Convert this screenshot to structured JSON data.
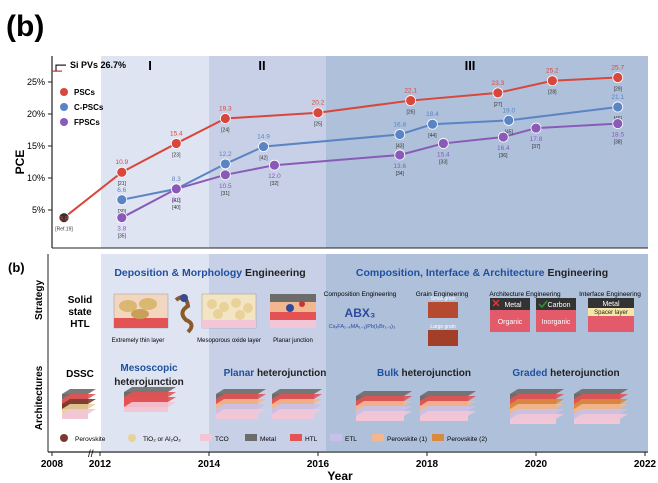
{
  "panel_label_top": "(b)",
  "panel_label_bottom": "(b)",
  "chart_data": {
    "type": "line",
    "ylabel": "PCE",
    "xlabel": "Year",
    "x_ticks": [
      "2008",
      "2012",
      "2014",
      "2016",
      "2018",
      "2020",
      "2022"
    ],
    "y_ticks": [
      "5%",
      "10%",
      "15%",
      "20%",
      "25%"
    ],
    "ylim": [
      0,
      30
    ],
    "stages": [
      "I",
      "II",
      "III"
    ],
    "reference_line": {
      "label": "Si PVs 26.7%",
      "value": 26.7
    },
    "legend_position": "top-left",
    "series": [
      {
        "name": "PSCs",
        "color": "#d9463b",
        "x": [
          2009.0,
          2012.4,
          2013.4,
          2014.3,
          2016.0,
          2017.7,
          2019.3,
          2020.3,
          2021.5
        ],
        "values": [
          3.8,
          10.9,
          15.4,
          19.3,
          20.2,
          22.1,
          23.3,
          25.2,
          25.7
        ],
        "refs": [
          "[Ref.19]",
          "[21]",
          "[23]",
          "[24]",
          "[25]",
          "[26]",
          "[27]",
          "[28]",
          "[29]"
        ]
      },
      {
        "name": "C-PSCs",
        "color": "#5a84c4",
        "x": [
          2012.4,
          2013.4,
          2014.3,
          2015.0,
          2017.5,
          2018.1,
          2019.5,
          2021.5
        ],
        "values": [
          6.6,
          8.3,
          12.2,
          14.9,
          16.8,
          18.4,
          19.0,
          21.1
        ],
        "refs": [
          "[30]",
          "[41]",
          "[32]",
          "[42]",
          "[43]",
          "[44]",
          "[45]",
          "[46]"
        ]
      },
      {
        "name": "FPSCs",
        "color": "#8a5ab8",
        "x": [
          2012.4,
          2013.4,
          2014.3,
          2015.2,
          2017.5,
          2018.3,
          2019.4,
          2020.0,
          2021.5
        ],
        "values": [
          3.8,
          8.3,
          10.5,
          12.0,
          13.6,
          15.4,
          16.4,
          17.8,
          18.5
        ],
        "refs": [
          "[35]",
          "[40]",
          "[31]",
          "[32]",
          "[34]",
          "[33]",
          "[36]",
          "[37]",
          "[38]"
        ]
      }
    ]
  },
  "lower": {
    "row_labels": [
      "Strategy",
      "Architectures"
    ],
    "left_labels": {
      "solid": [
        "Solid",
        "state",
        "HTL"
      ],
      "dssc": "DSSC"
    },
    "dme": {
      "title_prefix": "Deposition & Morphology",
      "title_suffix": " Engineering",
      "captions": [
        "Extremely thin layer",
        "Mesoporous oxide layer",
        "Planar junction"
      ]
    },
    "cia": {
      "title_prefix": "Composition, Interface & Architecture",
      "title_suffix": " Engineering",
      "cols": [
        "Composition Engineering",
        "Grain Engineering",
        "Architecture Engineering",
        "Interface Engineering"
      ],
      "abx": "ABX₃",
      "formula": "CsₓFA₁₋ₓMA₁₋ᵧ)Pb(IₓBr₁₋ₓ)₃",
      "grain": [
        "Small grain",
        "Large grain"
      ],
      "arch_boxes": [
        "Metal",
        "Carbon",
        "Organic",
        "Inorganic"
      ],
      "iface_boxes": [
        "Metal",
        "Spacer layer"
      ]
    },
    "architectures": [
      {
        "bold": "Mesoscopic",
        "rest": "heterojunction"
      },
      {
        "bold": "Planar",
        "rest": " heterojunction"
      },
      {
        "bold": "Bulk",
        "rest": " heterojunction"
      },
      {
        "bold": "Graded",
        "rest": " heterojunction"
      }
    ],
    "legend": [
      "Perovskite",
      "TiO₂ or Al₂O₃",
      "TCO",
      "Metal",
      "HTL",
      "ETL",
      "Perovskite (1)",
      "Perovskite (2)"
    ],
    "colors": {
      "perovskite": "#7a3b2e",
      "tio2": "#e8d29a",
      "tco": "#f2c6d6",
      "metal": "#6c6c6c",
      "htl": "#e35353",
      "etl": "#c8c0e8",
      "pero1": "#f1b890",
      "pero2": "#d98a40"
    }
  }
}
